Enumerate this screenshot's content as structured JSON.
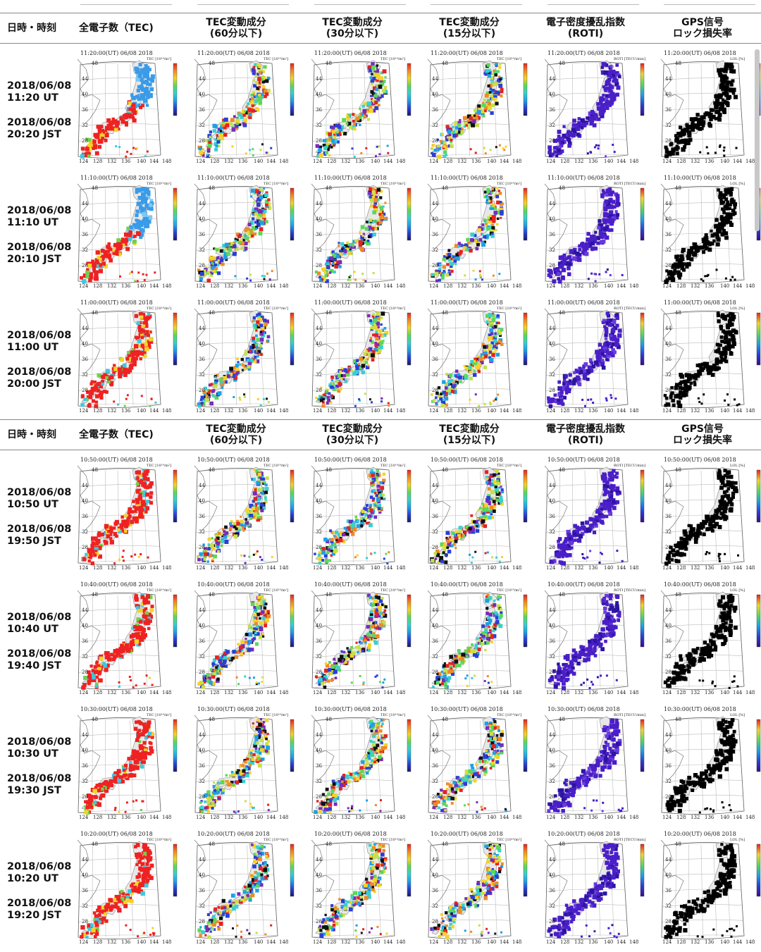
{
  "headers": {
    "time": "日時・時刻",
    "tec": "全電子数（TEC)",
    "tec60": [
      "TEC変動成分",
      "(60分以下)"
    ],
    "tec30": [
      "TEC変動成分",
      "(30分以下)"
    ],
    "tec15": [
      "TEC変動成分",
      "(15分以下)"
    ],
    "roti": [
      "電子密度擾乱指数",
      "(ROTI)"
    ],
    "lol": [
      "GPS信号",
      "ロック損失率"
    ]
  },
  "map_date": "06/08 2018",
  "lat_labels": [
    "48",
    "44",
    "40",
    "36",
    "32",
    "28",
    "24"
  ],
  "lon_labels": [
    "124",
    "128",
    "132",
    "136",
    "140",
    "144",
    "148"
  ],
  "unit_labels": {
    "tec": "TEC [10¹⁶/m²]",
    "tec60": "TEC [10¹⁶/m²]",
    "tec30": "TEC [10¹⁶/m²]",
    "tec15": "TEC [10¹⁶/m²]",
    "roti": "ROTI [TECU/min]",
    "lol": "LOL [%]"
  },
  "groups": [
    {
      "rows": [
        {
          "ut_date": "2018/06/08",
          "ut_time": "11:20 UT",
          "jst_date": "2018/06/08",
          "jst_time": "20:20 JST",
          "map_time": "11:20:00(UT)"
        },
        {
          "ut_date": "2018/06/08",
          "ut_time": "11:10 UT",
          "jst_date": "2018/06/08",
          "jst_time": "20:10 JST",
          "map_time": "11:10:00(UT)"
        },
        {
          "ut_date": "2018/06/08",
          "ut_time": "11:00 UT",
          "jst_date": "2018/06/08",
          "jst_time": "20:00 JST",
          "map_time": "11:00:00(UT)"
        }
      ]
    },
    {
      "rows": [
        {
          "ut_date": "2018/06/08",
          "ut_time": "10:50 UT",
          "jst_date": "2018/06/08",
          "jst_time": "19:50 JST",
          "map_time": "10:50:00(UT)"
        },
        {
          "ut_date": "2018/06/08",
          "ut_time": "10:40 UT",
          "jst_date": "2018/06/08",
          "jst_time": "19:40 JST",
          "map_time": "10:40:00(UT)"
        },
        {
          "ut_date": "2018/06/08",
          "ut_time": "10:30 UT",
          "jst_date": "2018/06/08",
          "jst_time": "19:30 JST",
          "map_time": "10:30:00(UT)"
        },
        {
          "ut_date": "2018/06/08",
          "ut_time": "10:20 UT",
          "jst_date": "2018/06/08",
          "jst_time": "19:20 JST",
          "map_time": "10:20:00(UT)"
        }
      ]
    }
  ],
  "colors": {
    "tec_main": "#ee2222",
    "tec_low": "#3a9be8",
    "roti_fill": "#4a1ec8",
    "lol_fill": "#000000",
    "rule": "#888888"
  }
}
